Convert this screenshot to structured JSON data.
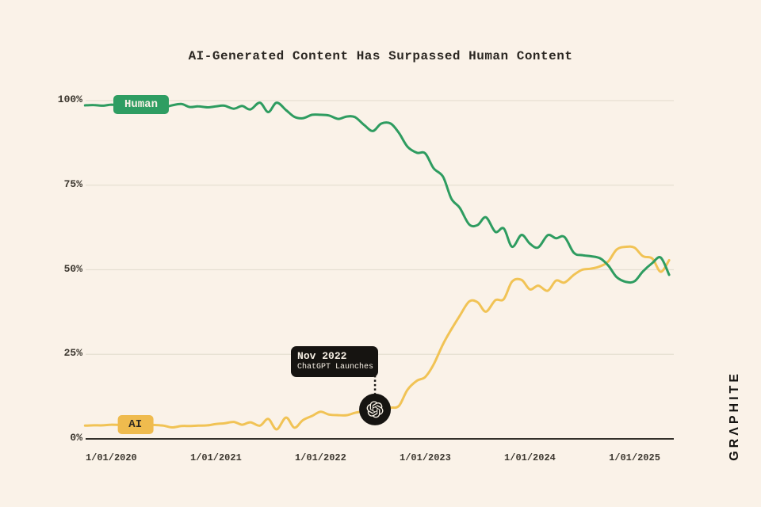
{
  "title": "AI-Generated Content Has Surpassed Human Content",
  "brand": {
    "name": "GRAPHITE",
    "display": "GRΛPHITE"
  },
  "colors": {
    "background": "#FAF2E8",
    "text_dark": "#2B2722",
    "gridline": "#E6DFD2",
    "baseline": "#33302A",
    "human_line": "#2E9C60",
    "human_pill_bg": "#2E9D62",
    "ai_line": "#F1C355",
    "ai_pill_bg": "#EFBB4E",
    "annotation_bg": "#161411",
    "annotation_text": "#F6EFE4"
  },
  "chart_data": {
    "type": "line",
    "title": "AI-Generated Content Has Surpassed Human Content",
    "xlabel": "",
    "ylabel": "",
    "x_domain": [
      2019.755,
      2025.375
    ],
    "y_domain": [
      0,
      100
    ],
    "grid": "horizontal",
    "y_ticks": [
      {
        "value": 100,
        "label": "100%"
      },
      {
        "value": 75,
        "label": "75%"
      },
      {
        "value": 50,
        "label": "50%"
      },
      {
        "value": 25,
        "label": "25%"
      },
      {
        "value": 0,
        "label": "0%"
      }
    ],
    "x_ticks": [
      {
        "value": 2020,
        "label": "1/01/2020"
      },
      {
        "value": 2021,
        "label": "1/01/2021"
      },
      {
        "value": 2022,
        "label": "1/01/2022"
      },
      {
        "value": 2023,
        "label": "1/01/2023"
      },
      {
        "value": 2024,
        "label": "1/01/2024"
      },
      {
        "value": 2025,
        "label": "1/01/2025"
      }
    ],
    "series": [
      {
        "name": "Human",
        "color": "#2E9C60",
        "label_anchor": {
          "x": 2020.285,
          "y": 98.8
        },
        "points": [
          [
            2019.75,
            98.6
          ],
          [
            2019.83,
            98.7
          ],
          [
            2019.92,
            98.5
          ],
          [
            2020.0,
            98.8
          ],
          [
            2020.08,
            98.6
          ],
          [
            2020.17,
            98.7
          ],
          [
            2020.25,
            98.5
          ],
          [
            2020.33,
            98.6
          ],
          [
            2020.42,
            98.3
          ],
          [
            2020.5,
            98.0
          ],
          [
            2020.58,
            98.6
          ],
          [
            2020.67,
            99.0
          ],
          [
            2020.75,
            98.1
          ],
          [
            2020.83,
            98.3
          ],
          [
            2020.92,
            98.0
          ],
          [
            2021.0,
            98.3
          ],
          [
            2021.08,
            98.5
          ],
          [
            2021.17,
            97.6
          ],
          [
            2021.25,
            98.4
          ],
          [
            2021.33,
            97.4
          ],
          [
            2021.42,
            99.4
          ],
          [
            2021.5,
            96.6
          ],
          [
            2021.58,
            99.4
          ],
          [
            2021.67,
            97.2
          ],
          [
            2021.75,
            95.2
          ],
          [
            2021.83,
            94.8
          ],
          [
            2021.92,
            95.8
          ],
          [
            2022.0,
            95.8
          ],
          [
            2022.08,
            95.6
          ],
          [
            2022.17,
            94.6
          ],
          [
            2022.25,
            95.3
          ],
          [
            2022.33,
            95.1
          ],
          [
            2022.42,
            92.7
          ],
          [
            2022.5,
            91.0
          ],
          [
            2022.58,
            93.2
          ],
          [
            2022.67,
            93.2
          ],
          [
            2022.75,
            90.4
          ],
          [
            2022.83,
            86.4
          ],
          [
            2022.92,
            84.6
          ],
          [
            2023.0,
            84.4
          ],
          [
            2023.08,
            80.0
          ],
          [
            2023.17,
            77.5
          ],
          [
            2023.25,
            71.0
          ],
          [
            2023.33,
            68.3
          ],
          [
            2023.42,
            63.4
          ],
          [
            2023.5,
            63.2
          ],
          [
            2023.58,
            65.5
          ],
          [
            2023.67,
            61.2
          ],
          [
            2023.75,
            62.2
          ],
          [
            2023.83,
            56.8
          ],
          [
            2023.92,
            60.3
          ],
          [
            2024.0,
            57.7
          ],
          [
            2024.08,
            56.6
          ],
          [
            2024.17,
            60.2
          ],
          [
            2024.25,
            59.3
          ],
          [
            2024.33,
            59.7
          ],
          [
            2024.42,
            55.0
          ],
          [
            2024.5,
            54.3
          ],
          [
            2024.58,
            54.0
          ],
          [
            2024.67,
            53.4
          ],
          [
            2024.75,
            51.2
          ],
          [
            2024.83,
            47.8
          ],
          [
            2024.92,
            46.4
          ],
          [
            2025.0,
            46.6
          ],
          [
            2025.08,
            49.5
          ],
          [
            2025.17,
            52.0
          ],
          [
            2025.25,
            53.6
          ],
          [
            2025.33,
            48.5
          ]
        ]
      },
      {
        "name": "AI",
        "color": "#F1C355",
        "label_anchor": {
          "x": 2020.23,
          "y": 4.2
        },
        "points": [
          [
            2019.75,
            3.9
          ],
          [
            2019.83,
            4.0
          ],
          [
            2019.92,
            4.0
          ],
          [
            2020.0,
            4.2
          ],
          [
            2020.08,
            4.1
          ],
          [
            2020.17,
            4.0
          ],
          [
            2020.25,
            4.2
          ],
          [
            2020.33,
            4.2
          ],
          [
            2020.42,
            4.1
          ],
          [
            2020.5,
            3.9
          ],
          [
            2020.58,
            3.4
          ],
          [
            2020.67,
            3.8
          ],
          [
            2020.75,
            3.8
          ],
          [
            2020.83,
            3.9
          ],
          [
            2020.92,
            4.0
          ],
          [
            2021.0,
            4.4
          ],
          [
            2021.08,
            4.6
          ],
          [
            2021.17,
            5.0
          ],
          [
            2021.25,
            4.2
          ],
          [
            2021.33,
            4.9
          ],
          [
            2021.42,
            3.9
          ],
          [
            2021.5,
            5.9
          ],
          [
            2021.58,
            2.8
          ],
          [
            2021.67,
            6.3
          ],
          [
            2021.75,
            3.3
          ],
          [
            2021.83,
            5.5
          ],
          [
            2021.92,
            6.8
          ],
          [
            2022.0,
            8.0
          ],
          [
            2022.08,
            7.2
          ],
          [
            2022.17,
            7.0
          ],
          [
            2022.25,
            7.0
          ],
          [
            2022.33,
            7.7
          ],
          [
            2022.42,
            8.2
          ],
          [
            2022.5,
            8.6
          ],
          [
            2022.58,
            8.8
          ],
          [
            2022.67,
            9.2
          ],
          [
            2022.75,
            9.8
          ],
          [
            2022.83,
            14.5
          ],
          [
            2022.92,
            17.2
          ],
          [
            2023.0,
            18.3
          ],
          [
            2023.08,
            22.0
          ],
          [
            2023.17,
            28.0
          ],
          [
            2023.25,
            32.4
          ],
          [
            2023.33,
            36.4
          ],
          [
            2023.42,
            40.6
          ],
          [
            2023.5,
            40.4
          ],
          [
            2023.58,
            37.6
          ],
          [
            2023.67,
            41.0
          ],
          [
            2023.75,
            41.3
          ],
          [
            2023.83,
            46.5
          ],
          [
            2023.92,
            47.0
          ],
          [
            2024.0,
            44.2
          ],
          [
            2024.08,
            45.3
          ],
          [
            2024.17,
            43.8
          ],
          [
            2024.25,
            46.8
          ],
          [
            2024.33,
            46.2
          ],
          [
            2024.42,
            48.5
          ],
          [
            2024.5,
            50.0
          ],
          [
            2024.58,
            50.3
          ],
          [
            2024.67,
            51.0
          ],
          [
            2024.75,
            52.5
          ],
          [
            2024.83,
            56.0
          ],
          [
            2024.92,
            56.8
          ],
          [
            2025.0,
            56.5
          ],
          [
            2025.08,
            54.0
          ],
          [
            2025.17,
            53.3
          ],
          [
            2025.25,
            49.4
          ],
          [
            2025.33,
            52.8
          ]
        ]
      }
    ],
    "annotation": {
      "title": "Nov 2022",
      "subtitle": "ChatGPT Launches",
      "x": 2022.52,
      "circle_y": 8.7,
      "icon": "openai-logo"
    }
  }
}
